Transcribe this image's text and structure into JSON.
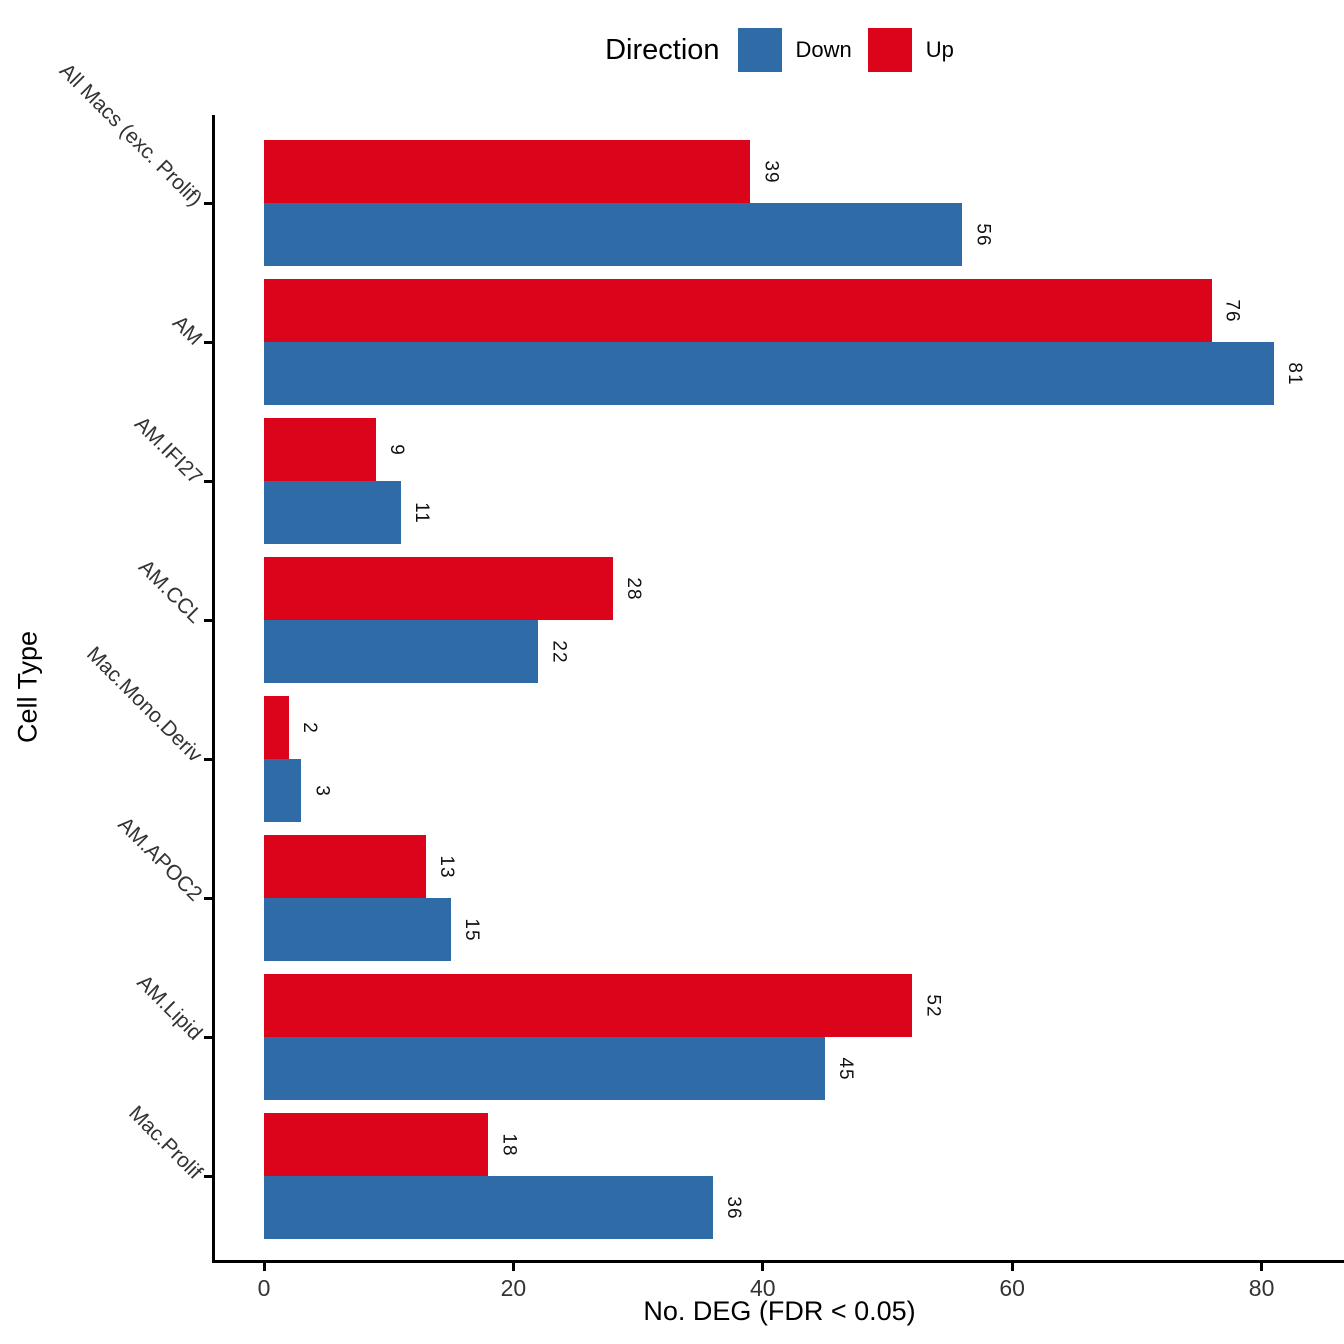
{
  "chart_data": {
    "type": "bar",
    "orientation": "horizontal",
    "title": "",
    "legend_title": "Direction",
    "legend_position": "top",
    "xlabel": "No. DEG (FDR < 0.05)",
    "ylabel": "Cell Type",
    "categories": [
      "All Macs (exc. Prolif)",
      "AM",
      "AM.IFI27",
      "AM.CCL",
      "Mac.Mono.Deriv",
      "AM.APOC2",
      "AM.Lipid",
      "Mac.Prolif"
    ],
    "series": [
      {
        "name": "Down",
        "color": "#2F6CA7",
        "values": [
          56,
          81,
          11,
          22,
          3,
          15,
          45,
          36
        ]
      },
      {
        "name": "Up",
        "color": "#DC041A",
        "values": [
          39,
          76,
          9,
          28,
          2,
          13,
          52,
          18
        ]
      }
    ],
    "pair_order_top_to_bottom": [
      "Up",
      "Down"
    ],
    "x_ticks": [
      0,
      20,
      40,
      60,
      80
    ],
    "xlim": [
      0,
      86.6
    ],
    "grid": false,
    "bar_value_labels": true,
    "value_label_rotation_deg": 90,
    "category_label_rotation_deg": 45,
    "axis_line_color": "#000000",
    "tick_label_color": "#333333",
    "background": "#FFFFFF"
  }
}
